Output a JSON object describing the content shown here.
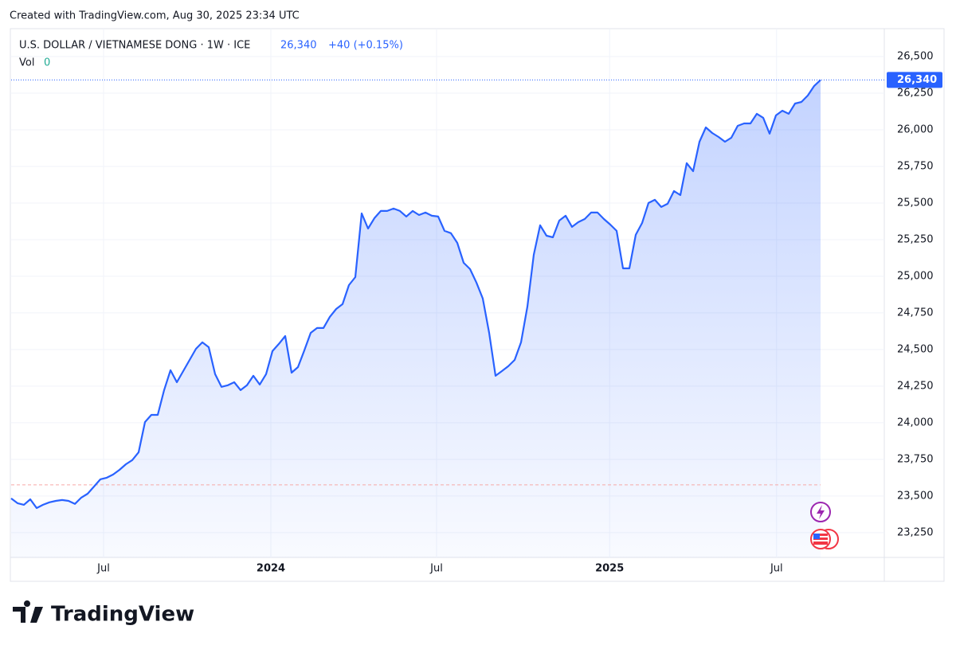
{
  "created": "Created with TradingView.com, Aug 30, 2025 23:34 UTC",
  "brand": "TradingView",
  "chart_data": {
    "type": "area",
    "title": "U.S. DOLLAR / VIETNAMESE DONG · 1W · ICE",
    "last_label": "26,340",
    "change_label": "+40 (+0.15%)",
    "volume_label": "Vol",
    "volume_value": "0",
    "color": "#2962ff",
    "baseline": 23576,
    "values": [
      23484,
      23451,
      23440,
      23478,
      23418,
      23440,
      23457,
      23467,
      23473,
      23467,
      23446,
      23489,
      23516,
      23565,
      23614,
      23625,
      23647,
      23679,
      23717,
      23745,
      23799,
      24005,
      24054,
      24054,
      24223,
      24359,
      24277,
      24353,
      24429,
      24505,
      24549,
      24516,
      24332,
      24245,
      24256,
      24277,
      24223,
      24256,
      24321,
      24261,
      24332,
      24489,
      24538,
      24592,
      24342,
      24380,
      24494,
      24614,
      24647,
      24647,
      24723,
      24777,
      24810,
      24940,
      24994,
      25429,
      25326,
      25397,
      25446,
      25446,
      25462,
      25446,
      25408,
      25446,
      25418,
      25435,
      25413,
      25408,
      25310,
      25294,
      25228,
      25092,
      25049,
      24957,
      24848,
      24614,
      24321,
      24353,
      24386,
      24429,
      24549,
      24793,
      25147,
      25348,
      25277,
      25266,
      25380,
      25413,
      25337,
      25370,
      25391,
      25435,
      25435,
      25391,
      25353,
      25310,
      25054,
      25054,
      25283,
      25364,
      25500,
      25522,
      25473,
      25495,
      25582,
      25554,
      25772,
      25717,
      25918,
      26016,
      25978,
      25951,
      25918,
      25946,
      26027,
      26043,
      26043,
      26109,
      26082,
      25973,
      26098,
      26130,
      26109,
      26179,
      26190,
      26234,
      26299,
      26340
    ],
    "xlim": [
      0,
      137
    ],
    "xticks": [
      {
        "value": 14.5,
        "label": "Jul"
      },
      {
        "value": 40.75,
        "label": "2024"
      },
      {
        "value": 66.75,
        "label": "Jul"
      },
      {
        "value": 93.9,
        "label": "2025"
      },
      {
        "value": 120.1,
        "label": "Jul"
      }
    ],
    "ylim": [
      23081,
      26690
    ],
    "yticks": [
      {
        "value": 23250,
        "label": "23,250"
      },
      {
        "value": 23500,
        "label": "23,500"
      },
      {
        "value": 23750,
        "label": "23,750"
      },
      {
        "value": 24000,
        "label": "24,000"
      },
      {
        "value": 24250,
        "label": "24,250"
      },
      {
        "value": 24500,
        "label": "24,500"
      },
      {
        "value": 24750,
        "label": "24,750"
      },
      {
        "value": 25000,
        "label": "25,000"
      },
      {
        "value": 25250,
        "label": "25,250"
      },
      {
        "value": 25500,
        "label": "25,500"
      },
      {
        "value": 25750,
        "label": "25,750"
      },
      {
        "value": 26000,
        "label": "26,000"
      },
      {
        "value": 26250,
        "label": "26,250"
      },
      {
        "value": 26500,
        "label": "26,500"
      }
    ],
    "grid": true
  }
}
